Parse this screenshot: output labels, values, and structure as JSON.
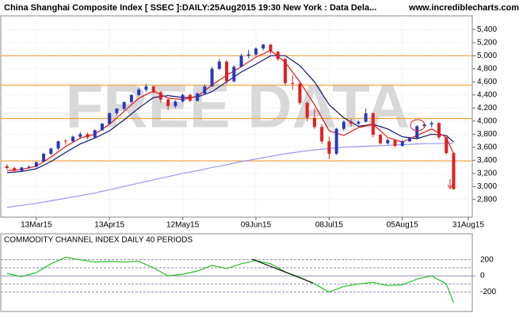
{
  "header": {
    "title": "China Shanghai Composite Index [ SSEC ]:DAILY:25Aug2015 19:30 New York : Data Dela...",
    "site": "www.incrediblecharts.com"
  },
  "chart_data": [
    {
      "type": "candlestick",
      "watermark": "FREE DATA",
      "up_color": "#2838c0",
      "down_color": "#e02020",
      "xlim": [
        -0.7,
        128.1
      ],
      "ylim": [
        2530,
        5610
      ],
      "xticks": [
        {
          "value": 9,
          "label": "13Mar15"
        },
        {
          "value": 29,
          "label": "13Apr15"
        },
        {
          "value": 49,
          "label": "12May15"
        },
        {
          "value": 69,
          "label": "09Jun15"
        },
        {
          "value": 89,
          "label": "08Jul15"
        },
        {
          "value": 109,
          "label": "05Aug15"
        },
        {
          "value": 127,
          "label": "31Aug15"
        }
      ],
      "yticks": [
        {
          "value": 5400,
          "label": "5,400"
        },
        {
          "value": 5200,
          "label": "5,200"
        },
        {
          "value": 5000,
          "label": "5,000"
        },
        {
          "value": 4800,
          "label": "4,800"
        },
        {
          "value": 4600,
          "label": "4,600"
        },
        {
          "value": 4400,
          "label": "4,400"
        },
        {
          "value": 4200,
          "label": "4,200"
        },
        {
          "value": 4000,
          "label": "4,000"
        },
        {
          "value": 3800,
          "label": "3,800"
        },
        {
          "value": 3600,
          "label": "3,600"
        },
        {
          "value": 3400,
          "label": "3,400"
        },
        {
          "value": 3200,
          "label": "3,200"
        },
        {
          "value": 3000,
          "label": "3,000"
        },
        {
          "value": 2800,
          "label": "2,800"
        }
      ],
      "grid": true,
      "levels": {
        "color": "#f0a040",
        "values": [
          5000,
          4550,
          4040,
          3390
        ]
      },
      "x": [
        1,
        3,
        5,
        7,
        9,
        11,
        13,
        15,
        17,
        19,
        21,
        23,
        25,
        27,
        29,
        31,
        33,
        35,
        37,
        39,
        41,
        43,
        45,
        47,
        49,
        51,
        53,
        55,
        57,
        59,
        61,
        63,
        65,
        67,
        69,
        71,
        73,
        75,
        77,
        79,
        81,
        83,
        85,
        87,
        89,
        91,
        93,
        95,
        97,
        99,
        101,
        103,
        105,
        107,
        109,
        111,
        113,
        115,
        117,
        119,
        121,
        123
      ],
      "ohlc": [
        [
          3310,
          3340,
          3260,
          3280
        ],
        [
          3280,
          3300,
          3220,
          3240
        ],
        [
          3240,
          3300,
          3230,
          3290
        ],
        [
          3290,
          3320,
          3270,
          3300
        ],
        [
          3300,
          3380,
          3290,
          3372
        ],
        [
          3380,
          3510,
          3370,
          3500
        ],
        [
          3500,
          3590,
          3480,
          3580
        ],
        [
          3580,
          3700,
          3560,
          3690
        ],
        [
          3700,
          3720,
          3640,
          3690
        ],
        [
          3690,
          3780,
          3670,
          3760
        ],
        [
          3760,
          3830,
          3740,
          3800
        ],
        [
          3800,
          3820,
          3720,
          3750
        ],
        [
          3750,
          3870,
          3740,
          3860
        ],
        [
          3860,
          3970,
          3850,
          3960
        ],
        [
          3960,
          4130,
          3950,
          4120
        ],
        [
          4120,
          4200,
          4080,
          4190
        ],
        [
          4190,
          4300,
          4170,
          4290
        ],
        [
          4290,
          4410,
          4270,
          4400
        ],
        [
          4400,
          4510,
          4380,
          4480
        ],
        [
          4480,
          4570,
          4450,
          4530
        ],
        [
          4530,
          4540,
          4420,
          4440
        ],
        [
          4440,
          4460,
          4280,
          4330
        ],
        [
          4330,
          4340,
          4170,
          4230
        ],
        [
          4230,
          4320,
          4200,
          4300
        ],
        [
          4300,
          4420,
          4280,
          4400
        ],
        [
          4400,
          4420,
          4290,
          4310
        ],
        [
          4310,
          4440,
          4300,
          4420
        ],
        [
          4420,
          4560,
          4400,
          4530
        ],
        [
          4530,
          4830,
          4520,
          4800
        ],
        [
          4800,
          4950,
          4780,
          4910
        ],
        [
          4910,
          4930,
          4560,
          4610
        ],
        [
          4610,
          4850,
          4590,
          4830
        ],
        [
          4830,
          5030,
          4820,
          5000
        ],
        [
          5000,
          5090,
          4960,
          5020
        ],
        [
          5020,
          5130,
          5000,
          5110
        ],
        [
          5110,
          5180,
          5080,
          5170
        ],
        [
          5170,
          5180,
          5030,
          5060
        ],
        [
          5060,
          5070,
          4920,
          4950
        ],
        [
          4950,
          4960,
          4550,
          4580
        ],
        [
          4580,
          4700,
          4480,
          4570
        ],
        [
          4570,
          4600,
          4250,
          4280
        ],
        [
          4280,
          4300,
          4000,
          4050
        ],
        [
          4050,
          4200,
          3880,
          3910
        ],
        [
          3910,
          3950,
          3650,
          3690
        ],
        [
          3690,
          3760,
          3420,
          3500
        ],
        [
          3500,
          3900,
          3480,
          3880
        ],
        [
          3880,
          4010,
          3850,
          3990
        ],
        [
          3990,
          4030,
          3920,
          3960
        ],
        [
          3960,
          4010,
          3940,
          3990
        ],
        [
          3990,
          4190,
          3980,
          4120
        ],
        [
          4120,
          4130,
          3750,
          3790
        ],
        [
          3790,
          3800,
          3640,
          3660
        ],
        [
          3660,
          3730,
          3640,
          3710
        ],
        [
          3710,
          3720,
          3600,
          3620
        ],
        [
          3620,
          3710,
          3610,
          3690
        ],
        [
          3690,
          3760,
          3680,
          3740
        ],
        [
          3740,
          3940,
          3730,
          3920
        ],
        [
          3920,
          3970,
          3900,
          3950
        ],
        [
          3950,
          4000,
          3900,
          3970
        ],
        [
          3970,
          3980,
          3720,
          3750
        ],
        [
          3750,
          3760,
          3490,
          3510
        ],
        [
          3510,
          3520,
          2950,
          2960
        ]
      ],
      "series": [
        {
          "color": "#9898f0",
          "x": [
            1,
            5,
            9,
            13,
            17,
            21,
            25,
            29,
            33,
            37,
            41,
            45,
            49,
            53,
            57,
            61,
            65,
            69,
            73,
            77,
            81,
            85,
            89,
            93,
            97,
            101,
            105,
            109,
            113,
            117,
            121,
            123
          ],
          "values": [
            2680,
            2710,
            2740,
            2780,
            2820,
            2860,
            2900,
            2950,
            3000,
            3050,
            3100,
            3150,
            3200,
            3240,
            3290,
            3330,
            3380,
            3420,
            3460,
            3500,
            3530,
            3560,
            3580,
            3600,
            3610,
            3620,
            3630,
            3640,
            3650,
            3655,
            3660,
            3660
          ]
        },
        {
          "color": "#101870",
          "x": [
            1,
            5,
            9,
            13,
            17,
            21,
            25,
            29,
            33,
            37,
            41,
            45,
            49,
            53,
            57,
            61,
            65,
            69,
            73,
            77,
            81,
            85,
            89,
            93,
            97,
            101,
            105,
            109,
            113,
            117,
            121,
            123
          ],
          "values": [
            3210,
            3230,
            3270,
            3380,
            3520,
            3650,
            3740,
            3850,
            4020,
            4200,
            4360,
            4390,
            4360,
            4370,
            4450,
            4600,
            4750,
            4870,
            5000,
            5000,
            4850,
            4600,
            4250,
            4050,
            3920,
            3950,
            3880,
            3760,
            3730,
            3800,
            3780,
            3680
          ]
        },
        {
          "color": "#e01818",
          "x": [
            1,
            5,
            9,
            13,
            17,
            21,
            25,
            29,
            33,
            37,
            41,
            45,
            49,
            53,
            57,
            61,
            65,
            69,
            73,
            77,
            81,
            85,
            89,
            93,
            97,
            101,
            105,
            109,
            113,
            117,
            121,
            123
          ],
          "values": [
            3240,
            3260,
            3310,
            3450,
            3610,
            3740,
            3800,
            3950,
            4150,
            4350,
            4460,
            4350,
            4330,
            4380,
            4550,
            4700,
            4830,
            4980,
            5080,
            4900,
            4600,
            4250,
            3850,
            3780,
            3900,
            3950,
            3750,
            3680,
            3780,
            3880,
            3750,
            3500
          ]
        }
      ]
    },
    {
      "type": "line",
      "title": "COMMODITY CHANNEL INDEX DAILY 40 PERIODS",
      "xlim": [
        -0.7,
        128.1
      ],
      "ylim": [
        -440,
        520
      ],
      "yticks": [
        200,
        0,
        -200
      ],
      "guides": [
        200,
        100,
        -100,
        -200
      ],
      "series": [
        {
          "color": "#20c020",
          "x": [
            1,
            5,
            9,
            13,
            17,
            21,
            25,
            29,
            33,
            37,
            41,
            45,
            49,
            53,
            57,
            61,
            65,
            69,
            73,
            77,
            81,
            85,
            89,
            93,
            97,
            101,
            105,
            109,
            113,
            117,
            121,
            123
          ],
          "values": [
            30,
            -10,
            40,
            150,
            230,
            200,
            170,
            180,
            170,
            180,
            100,
            0,
            20,
            60,
            130,
            90,
            150,
            190,
            150,
            50,
            -20,
            -100,
            -200,
            -130,
            -100,
            -80,
            -120,
            -110,
            -40,
            0,
            -100,
            -330
          ]
        }
      ]
    }
  ]
}
